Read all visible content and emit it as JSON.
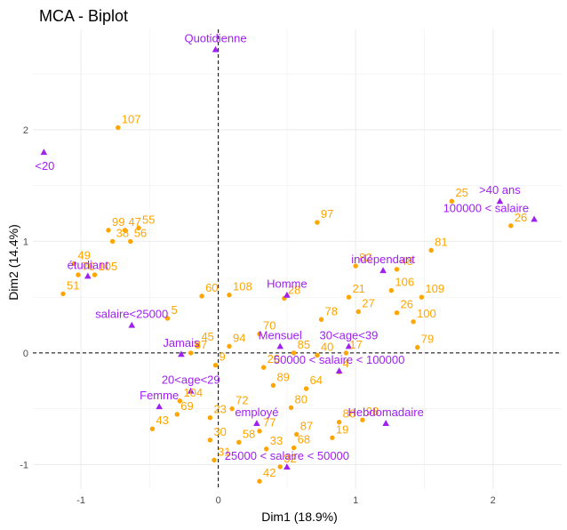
{
  "chart_data": {
    "type": "scatter",
    "title": "MCA - Biplot",
    "xlabel": "Dim1 (18.9%)",
    "ylabel": "Dim2 (14.4%)",
    "xlim": [
      -1.35,
      2.5
    ],
    "ylim": [
      -1.22,
      2.9
    ],
    "x_ticks": [
      -1,
      0,
      1,
      2
    ],
    "y_ticks": [
      -1,
      0,
      1,
      2
    ],
    "grid": true,
    "colors": {
      "individuals": "#FFA500",
      "variables": "#A020F0",
      "grid": "#ebebeb",
      "reference_line": "#000000"
    },
    "individuals": [
      {
        "label": "107",
        "x": -0.73,
        "y": 2.02
      },
      {
        "label": "99",
        "x": -0.8,
        "y": 1.1
      },
      {
        "label": "47",
        "x": -0.68,
        "y": 1.1
      },
      {
        "label": "55",
        "x": -0.58,
        "y": 1.12
      },
      {
        "label": "38",
        "x": -0.77,
        "y": 1.0
      },
      {
        "label": "56",
        "x": -0.64,
        "y": 1.0
      },
      {
        "label": "49",
        "x": -1.05,
        "y": 0.8
      },
      {
        "label": "76",
        "x": -1.02,
        "y": 0.7
      },
      {
        "label": "105",
        "x": -0.9,
        "y": 0.7
      },
      {
        "label": "51",
        "x": -1.13,
        "y": 0.53
      },
      {
        "label": "60",
        "x": -0.12,
        "y": 0.51
      },
      {
        "label": "108",
        "x": 0.08,
        "y": 0.52
      },
      {
        "label": "5",
        "x": -0.37,
        "y": 0.31
      },
      {
        "label": "25",
        "x": 1.7,
        "y": 1.36
      },
      {
        "label": "26",
        "x": 2.13,
        "y": 1.14
      },
      {
        "label": "97",
        "x": 0.72,
        "y": 1.17
      },
      {
        "label": "81",
        "x": 1.55,
        "y": 0.92
      },
      {
        "label": "82",
        "x": 1.0,
        "y": 0.78
      },
      {
        "label": "48",
        "x": 1.3,
        "y": 0.75
      },
      {
        "label": "106",
        "x": 1.26,
        "y": 0.56
      },
      {
        "label": "21",
        "x": 0.95,
        "y": 0.5
      },
      {
        "label": "109",
        "x": 1.48,
        "y": 0.5
      },
      {
        "label": "27",
        "x": 1.02,
        "y": 0.37
      },
      {
        "label": "26",
        "x": 1.3,
        "y": 0.36
      },
      {
        "label": "78",
        "x": 0.75,
        "y": 0.3
      },
      {
        "label": "100",
        "x": 1.42,
        "y": 0.28
      },
      {
        "label": "79",
        "x": 1.45,
        "y": 0.05
      },
      {
        "label": "28",
        "x": 0.48,
        "y": 0.49
      },
      {
        "label": "70",
        "x": 0.3,
        "y": 0.17
      },
      {
        "label": "45",
        "x": -0.15,
        "y": 0.07
      },
      {
        "label": "94",
        "x": 0.08,
        "y": 0.06
      },
      {
        "label": "85",
        "x": 0.55,
        "y": 0.0
      },
      {
        "label": "40",
        "x": 0.72,
        "y": -0.02
      },
      {
        "label": "17",
        "x": 0.93,
        "y": 0.0
      },
      {
        "label": "37",
        "x": -0.2,
        "y": 0.0
      },
      {
        "label": "9",
        "x": -0.02,
        "y": -0.11
      },
      {
        "label": "20",
        "x": 0.33,
        "y": -0.13
      },
      {
        "label": "4",
        "x": 0.88,
        "y": -0.17
      },
      {
        "label": "89",
        "x": 0.4,
        "y": -0.29
      },
      {
        "label": "64",
        "x": 0.64,
        "y": -0.32
      },
      {
        "label": "104",
        "x": -0.28,
        "y": -0.43
      },
      {
        "label": "80",
        "x": 0.53,
        "y": -0.49
      },
      {
        "label": "72",
        "x": 0.1,
        "y": -0.5
      },
      {
        "label": "23",
        "x": -0.06,
        "y": -0.58
      },
      {
        "label": "69",
        "x": -0.3,
        "y": -0.55
      },
      {
        "label": "43",
        "x": -0.48,
        "y": -0.68
      },
      {
        "label": "86",
        "x": 0.88,
        "y": -0.62
      },
      {
        "label": "98",
        "x": 1.05,
        "y": -0.6
      },
      {
        "label": "87",
        "x": 0.57,
        "y": -0.73
      },
      {
        "label": "77",
        "x": 0.3,
        "y": -0.7
      },
      {
        "label": "19",
        "x": 0.83,
        "y": -0.76
      },
      {
        "label": "30",
        "x": -0.06,
        "y": -0.78
      },
      {
        "label": "58",
        "x": 0.15,
        "y": -0.8
      },
      {
        "label": "33",
        "x": 0.35,
        "y": -0.86
      },
      {
        "label": "68",
        "x": 0.55,
        "y": -0.85
      },
      {
        "label": "31",
        "x": -0.03,
        "y": -0.96
      },
      {
        "label": "32",
        "x": 0.45,
        "y": -1.02
      },
      {
        "label": "42",
        "x": 0.3,
        "y": -1.15
      }
    ],
    "variables": [
      {
        "label": "Quotidienne",
        "x": -0.02,
        "y": 2.72
      },
      {
        "label": "<20",
        "x": -1.27,
        "y": 1.8
      },
      {
        "label": ">40 ans",
        "x": 2.05,
        "y": 1.36
      },
      {
        "label": "100000 < salaire",
        "x": 2.3,
        "y": 1.2
      },
      {
        "label": "indépendant",
        "x": 1.2,
        "y": 0.74
      },
      {
        "label": "étudiant",
        "x": -0.95,
        "y": 0.69
      },
      {
        "label": "Homme",
        "x": 0.5,
        "y": 0.52
      },
      {
        "label": "salaire<25000",
        "x": -0.63,
        "y": 0.25
      },
      {
        "label": "Mensuel",
        "x": 0.45,
        "y": 0.06
      },
      {
        "label": "30<age<39",
        "x": 0.95,
        "y": 0.06
      },
      {
        "label": "Jamais",
        "x": -0.27,
        "y": -0.01
      },
      {
        "label": "50000 < salaire < 100000",
        "x": 0.88,
        "y": -0.16
      },
      {
        "label": "20<age<29",
        "x": -0.2,
        "y": -0.34
      },
      {
        "label": "Femme",
        "x": -0.43,
        "y": -0.48
      },
      {
        "label": "Hebdomadaire",
        "x": 1.22,
        "y": -0.63
      },
      {
        "label": "employé",
        "x": 0.28,
        "y": -0.63
      },
      {
        "label": "25000 < salaire < 50000",
        "x": 0.5,
        "y": -1.02
      }
    ]
  }
}
